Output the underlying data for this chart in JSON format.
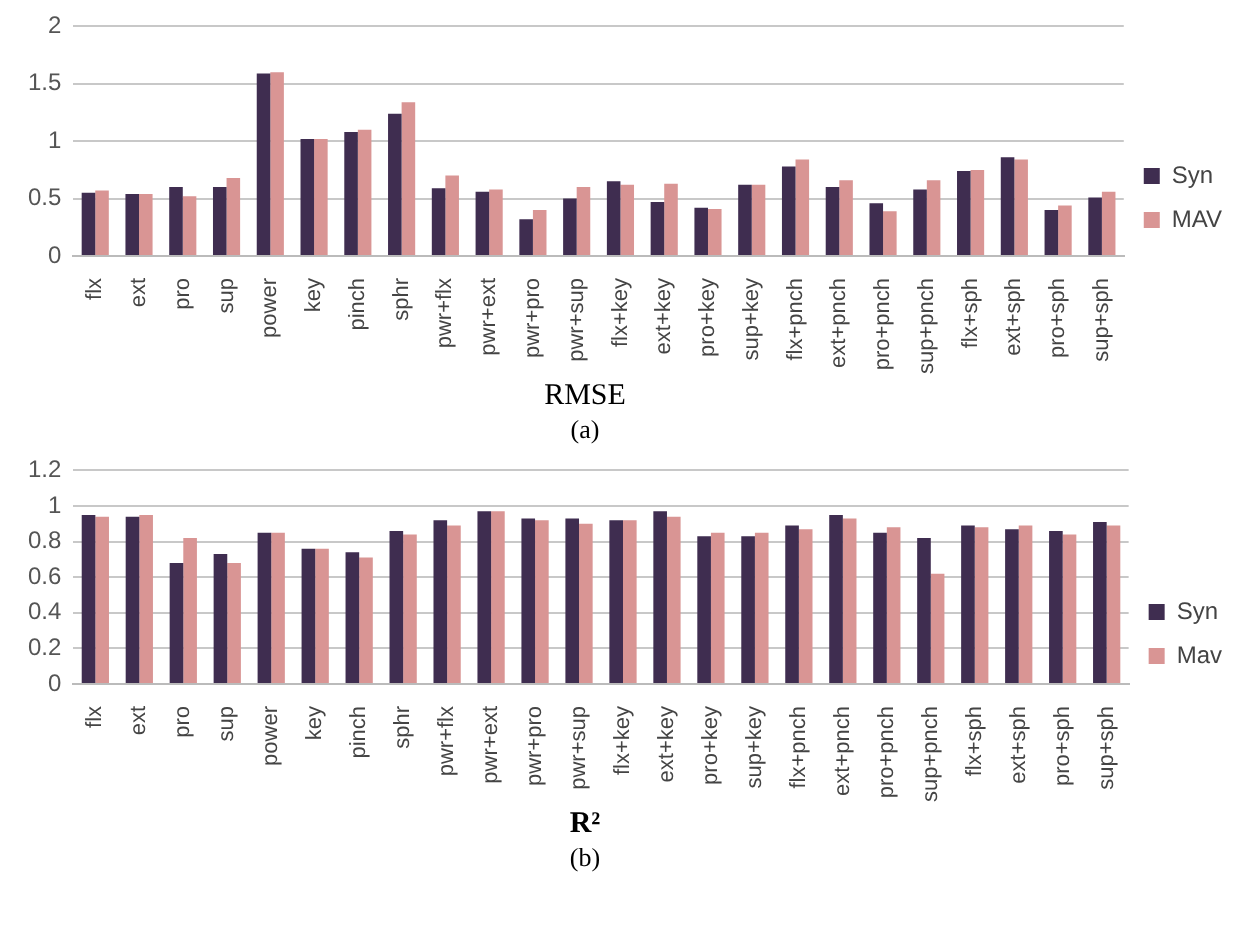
{
  "chart_data": [
    {
      "type": "bar",
      "title": "RMSE",
      "annotations": [
        "(a)"
      ],
      "categories": [
        "flx",
        "ext",
        "pro",
        "sup",
        "power",
        "key",
        "pinch",
        "sphr",
        "pwr+flx",
        "pwr+ext",
        "pwr+pro",
        "pwr+sup",
        "flx+key",
        "ext+key",
        "pro+key",
        "sup+key",
        "flx+pnch",
        "ext+pnch",
        "pro+pnch",
        "sup+pnch",
        "flx+sph",
        "ext+sph",
        "pro+sph",
        "sup+sph"
      ],
      "series": [
        {
          "name": "Syn",
          "color": "#3f2d50",
          "values": [
            0.55,
            0.54,
            0.6,
            0.6,
            1.59,
            1.02,
            1.08,
            1.24,
            0.59,
            0.56,
            0.32,
            0.5,
            0.65,
            0.47,
            0.42,
            0.62,
            0.78,
            0.6,
            0.46,
            0.58,
            0.74,
            0.86,
            0.4,
            0.51
          ]
        },
        {
          "name": "MAV",
          "color": "#d99594",
          "values": [
            0.57,
            0.54,
            0.52,
            0.68,
            1.6,
            1.02,
            1.1,
            1.34,
            0.7,
            0.58,
            0.4,
            0.6,
            0.62,
            0.63,
            0.41,
            0.62,
            0.84,
            0.66,
            0.39,
            0.66,
            0.75,
            0.84,
            0.44,
            0.56
          ]
        }
      ],
      "ylim": [
        0,
        2
      ],
      "yticks": [
        0,
        0.5,
        1,
        1.5,
        2
      ],
      "grid": "y",
      "legend": "right"
    },
    {
      "type": "bar",
      "title": "R²",
      "annotations": [
        "(b)"
      ],
      "categories": [
        "flx",
        "ext",
        "pro",
        "sup",
        "power",
        "key",
        "pinch",
        "sphr",
        "pwr+flx",
        "pwr+ext",
        "pwr+pro",
        "pwr+sup",
        "flx+key",
        "ext+key",
        "pro+key",
        "sup+key",
        "flx+pnch",
        "ext+pnch",
        "pro+pnch",
        "sup+pnch",
        "flx+sph",
        "ext+sph",
        "pro+sph",
        "sup+sph"
      ],
      "series": [
        {
          "name": "Syn",
          "color": "#3f2d50",
          "values": [
            0.95,
            0.94,
            0.68,
            0.73,
            0.85,
            0.76,
            0.74,
            0.86,
            0.92,
            0.97,
            0.93,
            0.93,
            0.92,
            0.97,
            0.83,
            0.83,
            0.89,
            0.95,
            0.85,
            0.82,
            0.89,
            0.87,
            0.86,
            0.91
          ]
        },
        {
          "name": "Mav",
          "color": "#d99594",
          "values": [
            0.94,
            0.95,
            0.82,
            0.68,
            0.85,
            0.76,
            0.71,
            0.84,
            0.89,
            0.97,
            0.92,
            0.9,
            0.92,
            0.94,
            0.85,
            0.85,
            0.87,
            0.93,
            0.88,
            0.62,
            0.88,
            0.89,
            0.84,
            0.89
          ]
        }
      ],
      "ylim": [
        0,
        1.2
      ],
      "yticks": [
        0,
        0.2,
        0.4,
        0.6,
        0.8,
        1,
        1.2
      ],
      "grid": "y",
      "legend": "right"
    }
  ]
}
